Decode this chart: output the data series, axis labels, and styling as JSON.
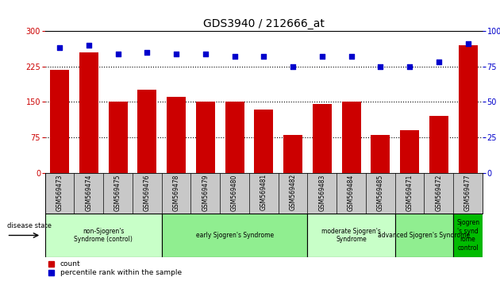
{
  "title": "GDS3940 / 212666_at",
  "samples": [
    "GSM569473",
    "GSM569474",
    "GSM569475",
    "GSM569476",
    "GSM569478",
    "GSM569479",
    "GSM569480",
    "GSM569481",
    "GSM569482",
    "GSM569483",
    "GSM569484",
    "GSM569485",
    "GSM569471",
    "GSM569472",
    "GSM569477"
  ],
  "counts": [
    218,
    255,
    150,
    175,
    160,
    150,
    150,
    133,
    80,
    145,
    150,
    80,
    90,
    120,
    270
  ],
  "percentile_ranks": [
    88,
    90,
    84,
    85,
    84,
    84,
    82,
    82,
    75,
    82,
    82,
    75,
    75,
    78,
    91
  ],
  "bar_color": "#cc0000",
  "dot_color": "#0000cc",
  "ylim_left": [
    0,
    300
  ],
  "ylim_right": [
    0,
    100
  ],
  "yticks_left": [
    0,
    75,
    150,
    225,
    300
  ],
  "yticks_right": [
    0,
    25,
    50,
    75,
    100
  ],
  "groups": [
    {
      "label": "non-Sjogren's\nSyndrome (control)",
      "start": 0,
      "end": 4,
      "color": "#c8ffc8"
    },
    {
      "label": "early Sjogren's Syndrome",
      "start": 4,
      "end": 9,
      "color": "#90ee90"
    },
    {
      "label": "moderate Sjogren's\nSyndrome",
      "start": 9,
      "end": 12,
      "color": "#c8ffc8"
    },
    {
      "label": "advanced Sjogren's Syndrome",
      "start": 12,
      "end": 14,
      "color": "#90ee90"
    },
    {
      "label": "Sjogren\n's synd\nrome\ncontrol",
      "start": 14,
      "end": 15,
      "color": "#00bb00"
    }
  ],
  "legend_labels": [
    "count",
    "percentile rank within the sample"
  ],
  "disease_state_label": "disease state",
  "tick_area_color": "#c8c8c8",
  "plot_bg": "#ffffff"
}
